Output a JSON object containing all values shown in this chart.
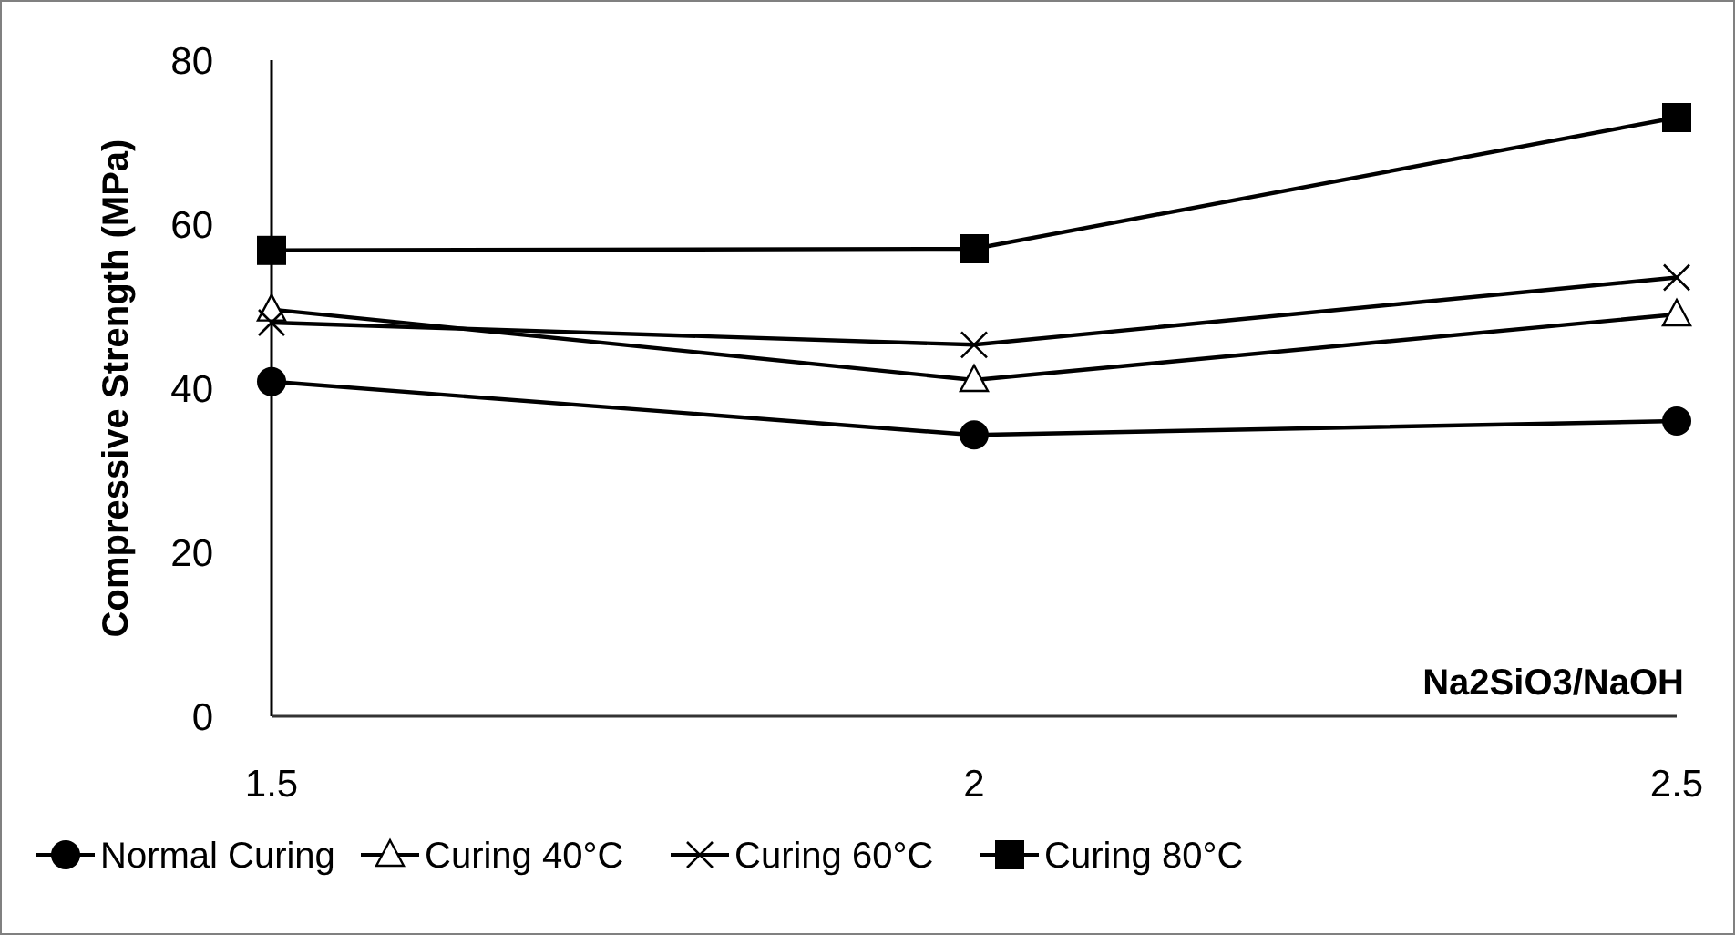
{
  "chart_data": {
    "type": "line",
    "xlabel": "Na2SiO3/NaOH",
    "ylabel": "Compressive Strength  (MPa)",
    "x": [
      1.5,
      2,
      2.5
    ],
    "xlim": [
      1.5,
      2.5
    ],
    "xticks": [
      1.5,
      2,
      2.5
    ],
    "ylim": [
      0,
      80
    ],
    "yticks": [
      0,
      20,
      40,
      60,
      80
    ],
    "grid": false,
    "legend": "bottom",
    "line_style": "solid",
    "series": [
      {
        "name": "Normal Curing",
        "color": "#000000",
        "marker": "circle",
        "values": [
          40.8,
          34.3,
          36
        ]
      },
      {
        "name": "Curing 40°C",
        "color": "#000000",
        "marker": "triangle",
        "values": [
          49.6,
          41,
          49
        ]
      },
      {
        "name": "Curing 60°C",
        "color": "#000000",
        "marker": "cross",
        "values": [
          48,
          45.3,
          53.5
        ]
      },
      {
        "name": "Curing 80°C",
        "color": "#000000",
        "marker": "square",
        "values": [
          56.8,
          57,
          73
        ]
      }
    ]
  }
}
